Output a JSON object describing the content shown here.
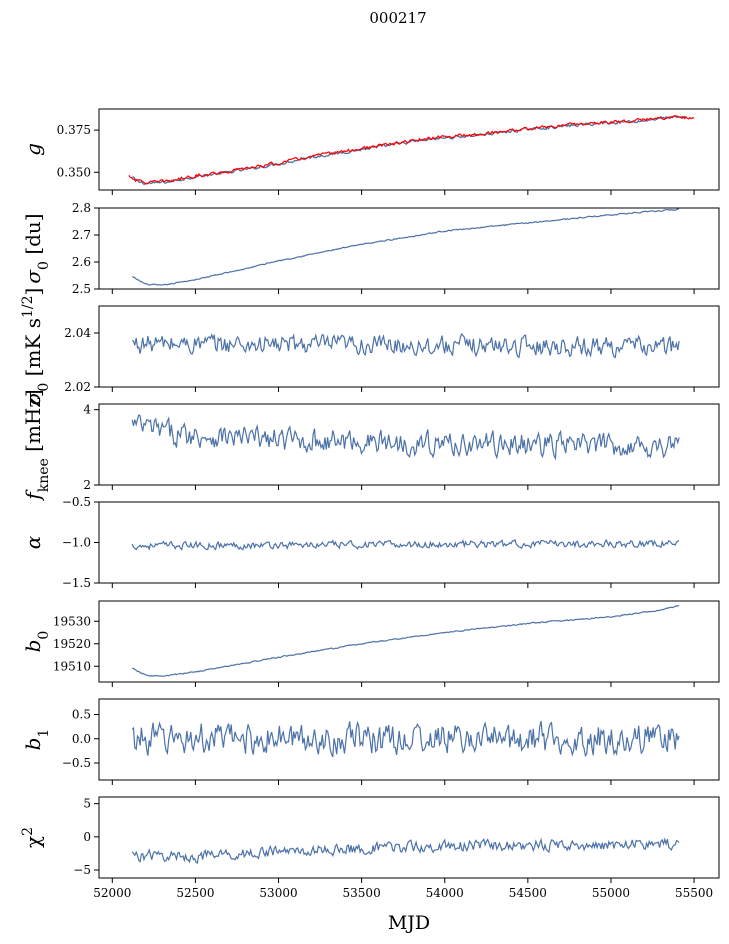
{
  "figure": {
    "title": "000217",
    "xlabel": "MJD",
    "xticks": [
      52000,
      52500,
      53000,
      53500,
      54000,
      54500,
      55000,
      55500
    ],
    "xlim": [
      51920,
      55650
    ]
  },
  "chart_data": [
    {
      "type": "line",
      "ylabel": "g",
      "ylim": [
        0.3395,
        0.3875
      ],
      "yticks": [
        {
          "value": 0.35,
          "label": "0.350"
        },
        {
          "value": 0.375,
          "label": "0.375"
        }
      ],
      "series": [
        {
          "color": "#4c72a8",
          "x_range": [
            52120,
            55450
          ],
          "noise": 0.0008,
          "knots": [
            [
              52120,
              0.347
            ],
            [
              52150,
              0.3445
            ],
            [
              52200,
              0.3435
            ],
            [
              52250,
              0.3435
            ],
            [
              52350,
              0.3445
            ],
            [
              52500,
              0.3475
            ],
            [
              52700,
              0.35
            ],
            [
              53000,
              0.355
            ],
            [
              53200,
              0.359
            ],
            [
              53500,
              0.3635
            ],
            [
              53800,
              0.368
            ],
            [
              54000,
              0.3705
            ],
            [
              54200,
              0.372
            ],
            [
              54500,
              0.3755
            ],
            [
              54800,
              0.378
            ],
            [
              55000,
              0.3795
            ],
            [
              55200,
              0.3805
            ],
            [
              55300,
              0.3822
            ],
            [
              55450,
              0.3828
            ]
          ]
        },
        {
          "color": "#ff0000",
          "x_range": [
            52100,
            55500
          ],
          "noise": 0.0009,
          "knots": [
            [
              52100,
              0.348
            ],
            [
              52150,
              0.345
            ],
            [
              52200,
              0.344
            ],
            [
              52250,
              0.344
            ],
            [
              52350,
              0.345
            ],
            [
              52500,
              0.348
            ],
            [
              52700,
              0.3505
            ],
            [
              53000,
              0.3555
            ],
            [
              53200,
              0.3595
            ],
            [
              53500,
              0.364
            ],
            [
              53800,
              0.3685
            ],
            [
              54000,
              0.371
            ],
            [
              54200,
              0.3725
            ],
            [
              54500,
              0.376
            ],
            [
              54800,
              0.3785
            ],
            [
              55000,
              0.38
            ],
            [
              55200,
              0.381
            ],
            [
              55300,
              0.3825
            ],
            [
              55500,
              0.3828
            ]
          ]
        }
      ]
    },
    {
      "type": "line",
      "ylabel": "σ0 [du]",
      "ylim": [
        2.5,
        2.8
      ],
      "yticks": [
        {
          "value": 2.5,
          "label": "2.5"
        },
        {
          "value": 2.6,
          "label": "2.6"
        },
        {
          "value": 2.7,
          "label": "2.7"
        },
        {
          "value": 2.8,
          "label": "2.8"
        }
      ],
      "series": [
        {
          "color": "#4c72a8",
          "x_range": [
            52120,
            55410
          ],
          "noise": 0.002,
          "knots": [
            [
              52120,
              2.545
            ],
            [
              52200,
              2.518
            ],
            [
              52300,
              2.513
            ],
            [
              52500,
              2.535
            ],
            [
              52800,
              2.575
            ],
            [
              53000,
              2.605
            ],
            [
              53500,
              2.665
            ],
            [
              54000,
              2.715
            ],
            [
              54500,
              2.745
            ],
            [
              55000,
              2.775
            ],
            [
              55410,
              2.795
            ]
          ]
        }
      ]
    },
    {
      "type": "line",
      "ylabel": "σ0 [mK s^1/2]",
      "ylim": [
        2.02,
        2.05
      ],
      "yticks": [
        {
          "value": 2.02,
          "label": "2.02"
        },
        {
          "value": 2.04,
          "label": "2.04"
        }
      ],
      "series": [
        {
          "color": "#4c72a8",
          "x_range": [
            52120,
            55410
          ],
          "noise": 0.0032,
          "knots": [
            [
              52120,
              2.036
            ],
            [
              55410,
              2.035
            ]
          ]
        }
      ]
    },
    {
      "type": "line",
      "ylabel": "f_knee [mHz]",
      "ylim": [
        2,
        4.15
      ],
      "yticks": [
        {
          "value": 2,
          "label": "2"
        },
        {
          "value": 4,
          "label": "4"
        }
      ],
      "series": [
        {
          "color": "#4c72a8",
          "x_range": [
            52120,
            55410
          ],
          "noise": 0.28,
          "knots": [
            [
              52120,
              3.6
            ],
            [
              52400,
              3.35
            ],
            [
              53000,
              3.2
            ],
            [
              54000,
              3.1
            ],
            [
              55000,
              3.05
            ],
            [
              55410,
              3.05
            ]
          ]
        }
      ]
    },
    {
      "type": "line",
      "ylabel": "α",
      "ylim": [
        -1.5,
        -0.5
      ],
      "yticks": [
        {
          "value": -1.5,
          "label": "−1.5"
        },
        {
          "value": -1.0,
          "label": "−1.0"
        },
        {
          "value": -0.5,
          "label": "−0.5"
        }
      ],
      "series": [
        {
          "color": "#4c72a8",
          "x_range": [
            52120,
            55410
          ],
          "noise": 0.04,
          "knots": [
            [
              52120,
              -1.04
            ],
            [
              55410,
              -1.01
            ]
          ]
        }
      ]
    },
    {
      "type": "line",
      "ylabel": "b0",
      "ylim": [
        19503,
        19539
      ],
      "yticks": [
        {
          "value": 19510,
          "label": "19510"
        },
        {
          "value": 19520,
          "label": "19520"
        },
        {
          "value": 19530,
          "label": "19530"
        }
      ],
      "series": [
        {
          "color": "#4c72a8",
          "x_range": [
            52120,
            55410
          ],
          "noise": 0.25,
          "knots": [
            [
              52120,
              19509
            ],
            [
              52200,
              19506
            ],
            [
              52300,
              19505.5
            ],
            [
              52500,
              19507.5
            ],
            [
              53000,
              19514
            ],
            [
              53500,
              19520
            ],
            [
              54000,
              19525
            ],
            [
              54500,
              19529
            ],
            [
              55000,
              19532
            ],
            [
              55300,
              19535
            ],
            [
              55410,
              19537
            ]
          ]
        }
      ]
    },
    {
      "type": "line",
      "ylabel": "b1",
      "ylim": [
        -0.85,
        0.82
      ],
      "yticks": [
        {
          "value": -0.5,
          "label": "−0.5"
        },
        {
          "value": 0,
          "label": "0.0"
        },
        {
          "value": 0.5,
          "label": "0.5"
        }
      ],
      "series": [
        {
          "color": "#4c72a8",
          "x_range": [
            52120,
            55410
          ],
          "noise": 0.28,
          "knots": [
            [
              52120,
              0.0
            ],
            [
              55410,
              0.0
            ]
          ]
        }
      ]
    },
    {
      "type": "line",
      "ylabel": "χ^2",
      "ylim": [
        -6.2,
        6
      ],
      "yticks": [
        {
          "value": -5,
          "label": "−5"
        },
        {
          "value": 0,
          "label": "0"
        },
        {
          "value": 5,
          "label": "5"
        }
      ],
      "series": [
        {
          "color": "#4c72a8",
          "x_range": [
            52120,
            55410
          ],
          "noise": 0.75,
          "knots": [
            [
              52120,
              -2.8
            ],
            [
              52500,
              -3.0
            ],
            [
              53000,
              -2.2
            ],
            [
              54000,
              -1.4
            ],
            [
              55000,
              -1.2
            ],
            [
              55410,
              -1.1
            ]
          ]
        }
      ]
    }
  ]
}
